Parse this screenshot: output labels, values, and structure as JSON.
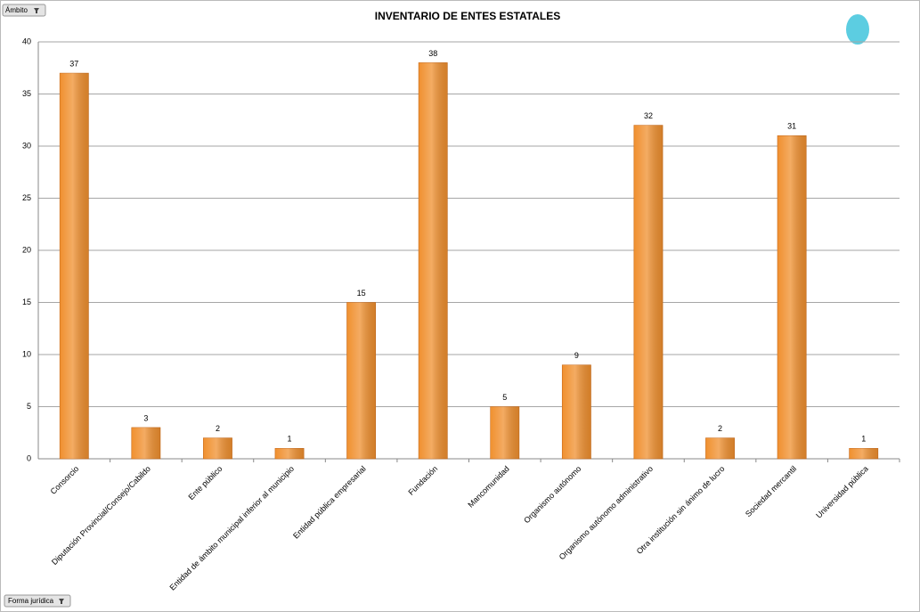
{
  "filters": {
    "top": "Ámbito",
    "bottom": "Forma jurídica"
  },
  "chart_data": {
    "type": "bar",
    "title": "INVENTARIO DE ENTES ESTATALES",
    "categories": [
      "Consorcio",
      "Diputación Provincial/Consejo/Cabildo",
      "Ente público",
      "Entidad de ámbito municipal inferior al municipio",
      "Entidad pública empresarial",
      "Fundación",
      "Mancomunidad",
      "Organismo autónomo",
      "Organismo autónomo administrativo",
      "Otra institución sin ánimo de lucro",
      "Sociedad mercantil",
      "Universidad pública"
    ],
    "values": [
      37,
      3,
      2,
      1,
      15,
      38,
      5,
      9,
      32,
      2,
      31,
      1
    ],
    "color": "#f0902f",
    "ylim": [
      0,
      40
    ],
    "yticks": [
      0,
      5,
      10,
      15,
      20,
      25,
      30,
      35,
      40
    ],
    "grid": true
  }
}
